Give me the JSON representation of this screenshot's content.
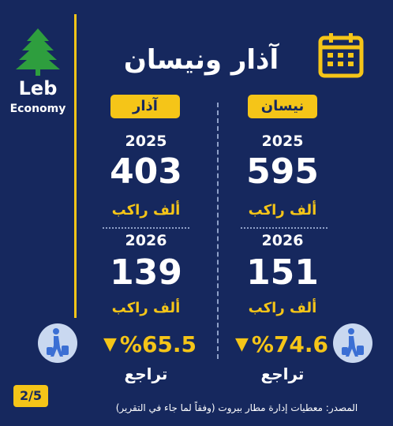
{
  "brand": {
    "name": "Leb",
    "subtitle": "Economy"
  },
  "title": "آذار ونيسان",
  "columns": [
    {
      "month": "نيسان",
      "rows": [
        {
          "year": 2025,
          "value": 595,
          "unit": "ألف راكب"
        },
        {
          "year": 2026,
          "value": 151,
          "unit": "ألف راكب"
        }
      ],
      "change": "%74.6",
      "direction": "تراجع"
    },
    {
      "month": "آذار",
      "rows": [
        {
          "year": 2025,
          "value": 403,
          "unit": "ألف راكب"
        },
        {
          "year": 2026,
          "value": 139,
          "unit": "ألف راكب"
        }
      ],
      "change": "%65.5",
      "direction": "تراجع"
    }
  ],
  "page": "2/5",
  "source": "المصدر: معطيات إدارة مطار بيروت (وفقاً لما جاء في التقرير)"
}
